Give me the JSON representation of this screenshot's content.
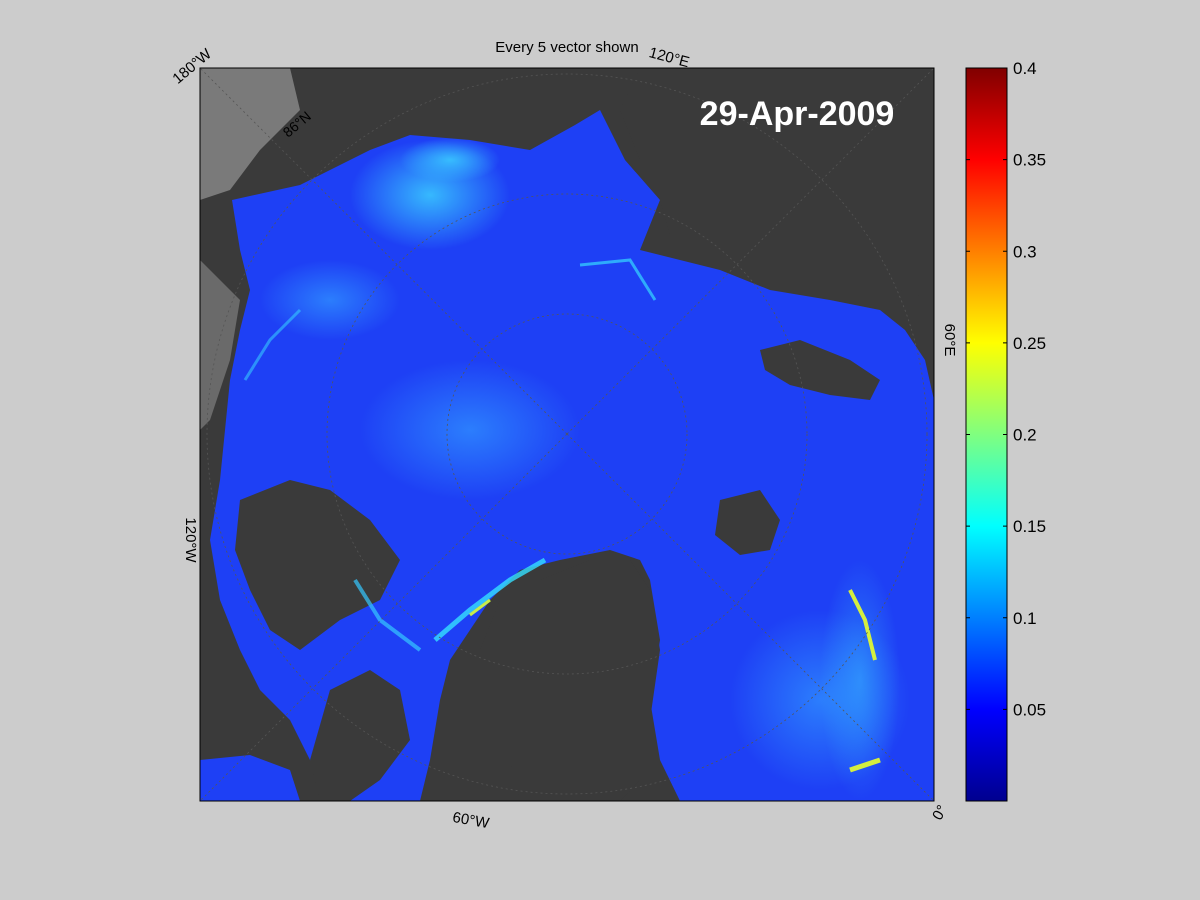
{
  "figure": {
    "title": "Every 5 vector shown",
    "date_label": "29-Apr-2009"
  },
  "map": {
    "lon_labels": [
      "180°W",
      "120°E",
      "60°E",
      "0°",
      "60°W",
      "120°W"
    ],
    "lat_label": "86°N",
    "colors": {
      "background": "#cccccc",
      "land": "#3a3a3a",
      "land_far": "#7a7a7a",
      "ice_low": "#1a2df0",
      "ice_mid": "#1e5cff",
      "vector": "#ffffff"
    },
    "vector_icon": "arrow-vector-icon"
  },
  "colorbar": {
    "tick_labels": [
      "0.4",
      "0.35",
      "0.3",
      "0.25",
      "0.2",
      "0.15",
      "0.1",
      "0.05"
    ],
    "range": [
      0,
      0.4
    ],
    "colormap": "jet"
  }
}
